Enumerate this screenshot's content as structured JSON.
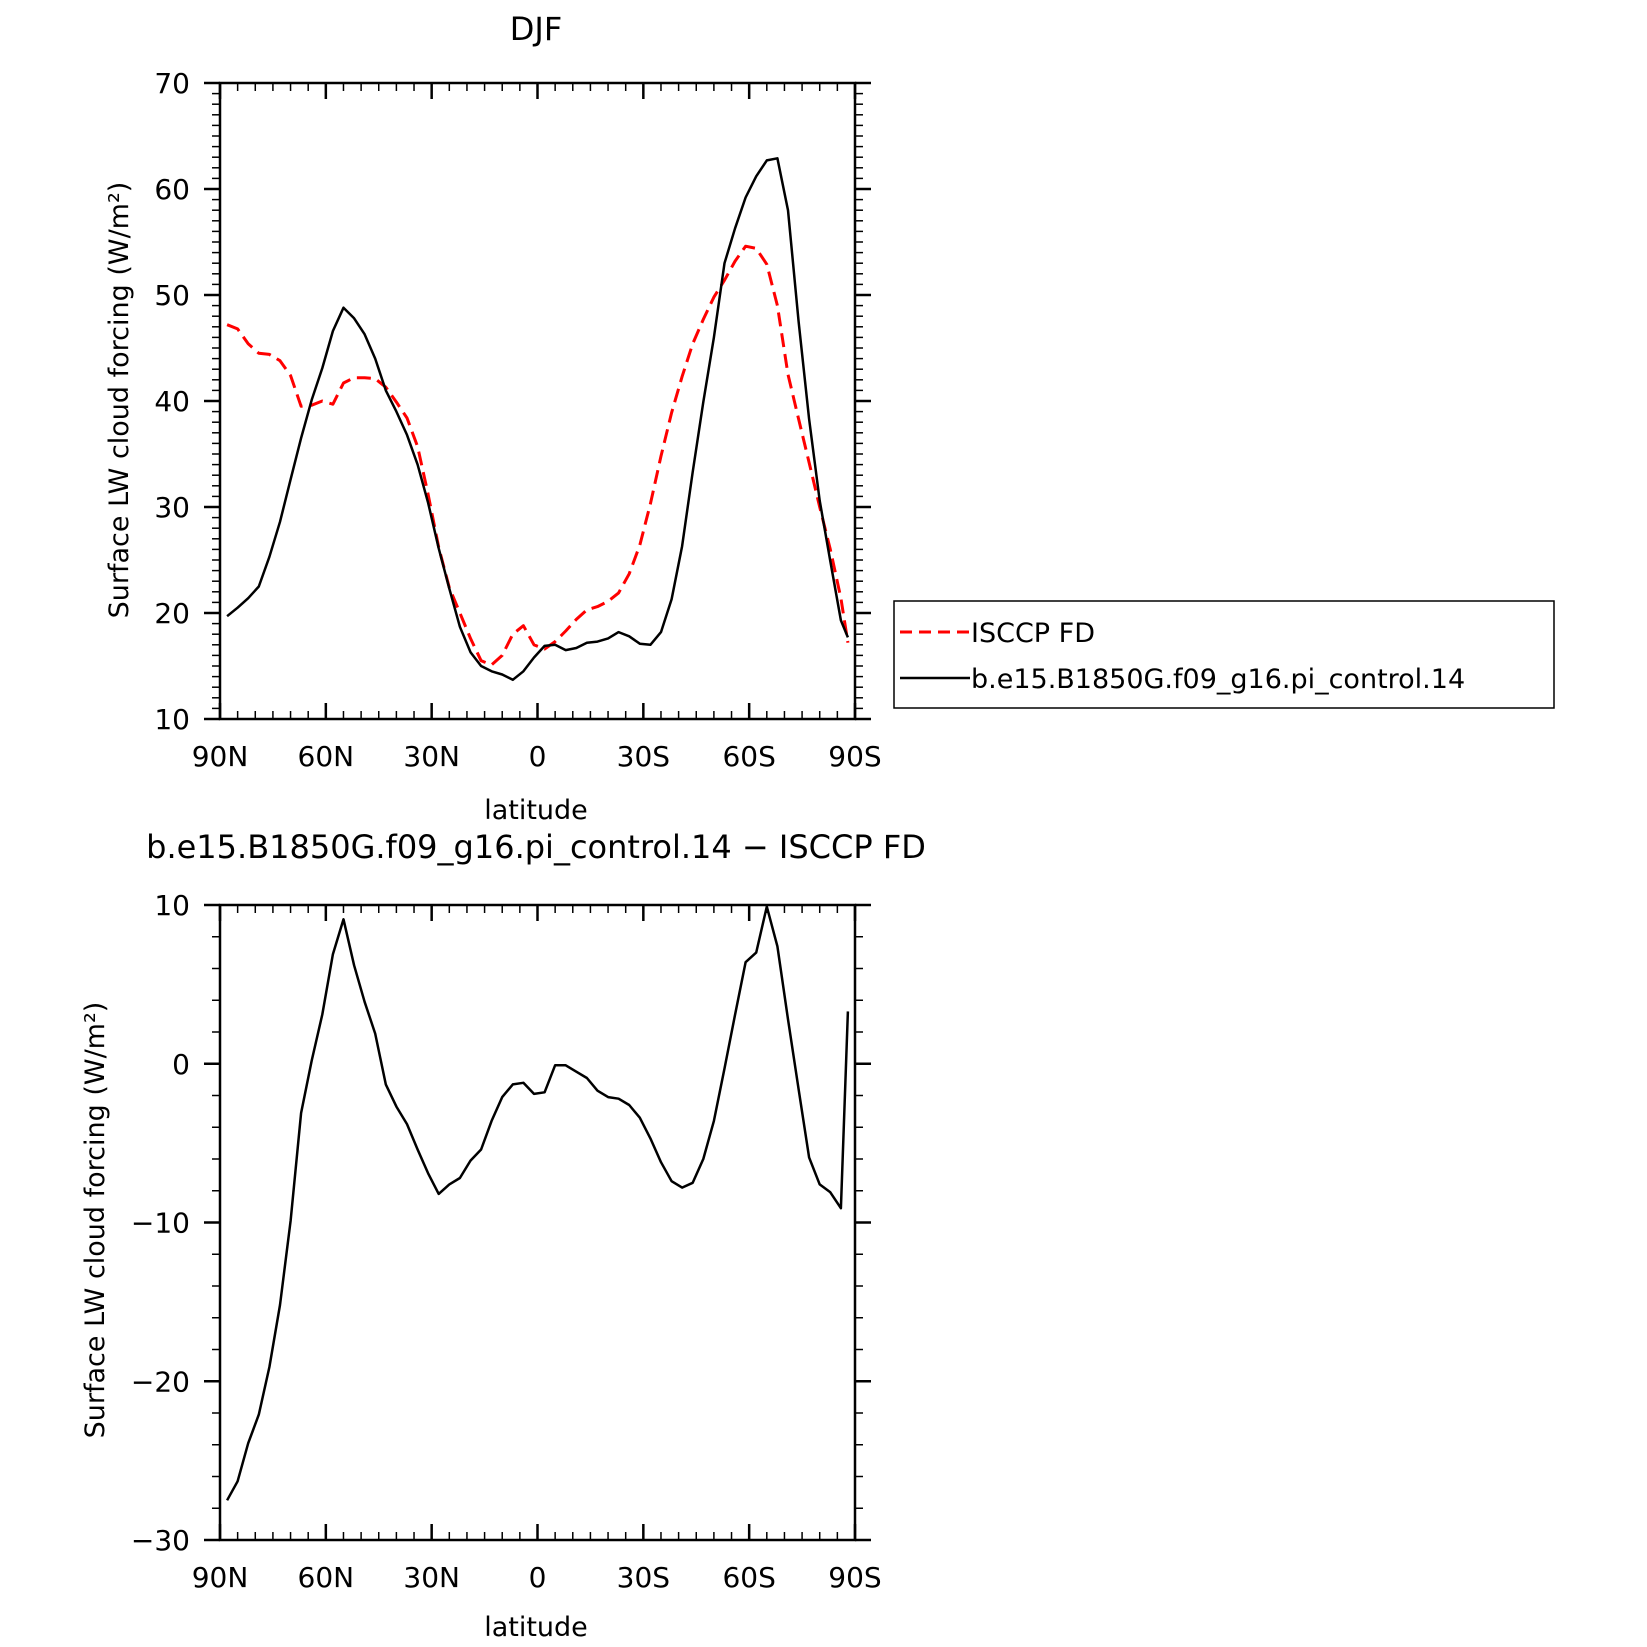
{
  "chart_data": [
    {
      "type": "line",
      "title": "DJF",
      "xlabel": "latitude",
      "ylabel": "Surface LW cloud forcing (W/m²)",
      "xlim": [
        90,
        -90
      ],
      "ylim": [
        10,
        70
      ],
      "xticks": [
        90,
        60,
        30,
        0,
        -30,
        -60,
        -90
      ],
      "xtick_labels": [
        "90N",
        "60N",
        "30N",
        "0",
        "30S",
        "60S",
        "90S"
      ],
      "yticks": [
        10,
        20,
        30,
        40,
        50,
        60,
        70
      ],
      "ytick_labels": [
        "10",
        "20",
        "30",
        "40",
        "50",
        "60",
        "70"
      ],
      "legend": {
        "placement": "right",
        "entries": [
          "ISCCP FD",
          "b.e15.B1850G.f09_g16.pi_control.14"
        ]
      },
      "series": [
        {
          "name": "ISCCP FD",
          "color": "#ff0000",
          "dash": "dashed",
          "x": [
            88,
            85,
            82,
            79,
            76,
            73,
            70,
            67,
            64,
            61,
            58,
            55,
            52,
            49,
            46,
            43,
            40,
            37,
            34,
            31,
            28,
            25,
            22,
            19,
            16,
            13,
            10,
            7,
            4,
            1,
            -2,
            -5,
            -8,
            -11,
            -14,
            -17,
            -20,
            -23,
            -26,
            -29,
            -32,
            -35,
            -38,
            -41,
            -44,
            -47,
            -50,
            -53,
            -56,
            -59,
            -62,
            -65,
            -68,
            -71,
            -74,
            -77,
            -80,
            -83,
            -86,
            -88
          ],
          "y": [
            47.2,
            46.8,
            45.4,
            44.5,
            44.4,
            43.8,
            42.4,
            39.5,
            39.6,
            40.0,
            39.7,
            41.7,
            42.2,
            42.2,
            42.1,
            41.3,
            39.9,
            38.4,
            35.7,
            31.2,
            26.2,
            22.4,
            20.0,
            17.6,
            15.5,
            15.1,
            16.0,
            18.0,
            18.8,
            17.0,
            16.6,
            17.3,
            18.3,
            19.4,
            20.3,
            20.6,
            21.1,
            21.9,
            23.7,
            26.4,
            30.3,
            34.8,
            38.9,
            42.3,
            45.4,
            47.7,
            49.8,
            51.4,
            53.2,
            54.6,
            54.4,
            52.9,
            49.0,
            42.5,
            38.3,
            34.2,
            30.0,
            26.0,
            21.4,
            17.2
          ]
        },
        {
          "name": "b.e15.B1850G.f09_g16.pi_control.14",
          "color": "#000000",
          "dash": "solid",
          "x": [
            88,
            85,
            82,
            79,
            76,
            73,
            70,
            67,
            64,
            61,
            58,
            55,
            52,
            49,
            46,
            43,
            40,
            37,
            34,
            31,
            28,
            25,
            22,
            19,
            16,
            13,
            10,
            7,
            4,
            1,
            -2,
            -5,
            -8,
            -11,
            -14,
            -17,
            -20,
            -23,
            -26,
            -29,
            -32,
            -35,
            -38,
            -41,
            -44,
            -47,
            -50,
            -53,
            -56,
            -59,
            -62,
            -65,
            -68,
            -71,
            -74,
            -77,
            -80,
            -83,
            -86,
            -88
          ],
          "y": [
            19.7,
            20.5,
            21.4,
            22.5,
            25.3,
            28.6,
            32.6,
            36.5,
            40.1,
            43.1,
            46.6,
            48.8,
            47.8,
            46.3,
            44.0,
            41.0,
            39.0,
            36.8,
            34.0,
            30.4,
            26.1,
            22.3,
            18.7,
            16.3,
            15.0,
            14.5,
            14.2,
            13.7,
            14.5,
            15.8,
            16.9,
            17.0,
            16.5,
            16.7,
            17.2,
            17.3,
            17.6,
            18.2,
            17.8,
            17.1,
            17.0,
            18.2,
            21.3,
            26.3,
            33.3,
            39.9,
            46.0,
            53.0,
            56.3,
            59.2,
            61.2,
            62.7,
            62.9,
            58.0,
            47.5,
            38.3,
            30.6,
            24.9,
            19.3,
            17.7
          ]
        }
      ]
    },
    {
      "type": "line",
      "title": "b.e15.B1850G.f09_g16.pi_control.14 − ISCCP FD",
      "xlabel": "latitude",
      "ylabel": "Surface LW cloud forcing (W/m²)",
      "xlim": [
        90,
        -90
      ],
      "ylim": [
        -30,
        10
      ],
      "xticks": [
        90,
        60,
        30,
        0,
        -30,
        -60,
        -90
      ],
      "xtick_labels": [
        "90N",
        "60N",
        "30N",
        "0",
        "30S",
        "60S",
        "90S"
      ],
      "yticks": [
        -30,
        -20,
        -10,
        0,
        10
      ],
      "ytick_labels": [
        "−30",
        "−20",
        "−10",
        "0",
        "10"
      ],
      "series": [
        {
          "color": "#000000",
          "dash": "solid",
          "x": [
            88,
            85,
            82,
            79,
            76,
            73,
            70,
            67,
            64,
            61,
            58,
            55,
            52,
            49,
            46,
            43,
            40,
            37,
            34,
            31,
            28,
            25,
            22,
            19,
            16,
            13,
            10,
            7,
            4,
            1,
            -2,
            -5,
            -8,
            -11,
            -14,
            -17,
            -20,
            -23,
            -26,
            -29,
            -32,
            -35,
            -38,
            -41,
            -44,
            -47,
            -50,
            -53,
            -56,
            -59,
            -62,
            -65,
            -68,
            -71,
            -74,
            -77,
            -80,
            -83,
            -86,
            -88
          ],
          "y": [
            -27.5,
            -26.3,
            -23.9,
            -22.1,
            -19.1,
            -15.2,
            -9.9,
            -3.1,
            0.2,
            3.1,
            6.9,
            9.1,
            6.2,
            3.9,
            1.9,
            -1.3,
            -2.7,
            -3.8,
            -5.4,
            -6.9,
            -8.2,
            -7.6,
            -7.2,
            -6.1,
            -5.4,
            -3.6,
            -2.1,
            -1.3,
            -1.2,
            -1.9,
            -1.8,
            -0.1,
            -0.1,
            -0.5,
            -0.9,
            -1.7,
            -2.1,
            -2.2,
            -2.6,
            -3.4,
            -4.7,
            -6.2,
            -7.4,
            -7.8,
            -7.5,
            -6.0,
            -3.6,
            -0.3,
            3.1,
            6.4,
            7.0,
            9.9,
            7.4,
            2.8,
            -1.6,
            -5.9,
            -7.6,
            -8.1,
            -9.1,
            3.3
          ]
        }
      ]
    }
  ]
}
